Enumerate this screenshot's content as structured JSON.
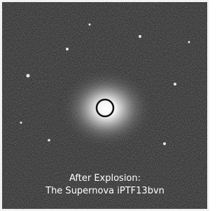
{
  "caption": {
    "line1": "After Explosion:",
    "line2": "The Supernova iPTF13bvn"
  }
}
